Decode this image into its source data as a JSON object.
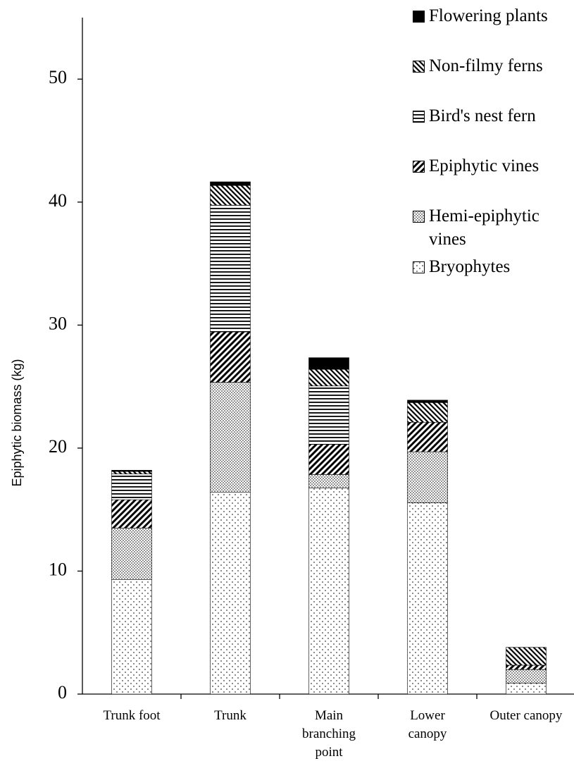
{
  "chart_data": {
    "type": "stacked_bar",
    "y_label": "Epiphytic biomass (kg)",
    "categories": [
      "Trunk foot",
      "Trunk",
      "Main branching point",
      "Lower canopy",
      "Outer canopy"
    ],
    "series": [
      {
        "name": "Bryophytes",
        "color": "#000000",
        "pattern": "sparse-dots",
        "values": [
          9.3,
          16.4,
          16.75,
          15.55,
          0.9
        ]
      },
      {
        "name": "Hemi-epiphytic vines",
        "color": "#000000",
        "pattern": "dense-dots",
        "values": [
          4.2,
          8.95,
          1.1,
          4.15,
          1.1
        ]
      },
      {
        "name": "Epiphytic vines",
        "color": "#000000",
        "pattern": "back-diagonal",
        "values": [
          2.3,
          4.1,
          2.45,
          2.4,
          0.35
        ]
      },
      {
        "name": "Bird's nest fern",
        "color": "#000000",
        "pattern": "horizontal",
        "values": [
          2.1,
          10.3,
          4.75,
          0,
          0
        ]
      },
      {
        "name": "Non-filmy ferns",
        "color": "#000000",
        "pattern": "forward-diagonal",
        "values": [
          0.2,
          1.6,
          1.35,
          1.6,
          1.45
        ]
      },
      {
        "name": "Flowering plants",
        "color": "#000000",
        "pattern": "solid",
        "values": [
          0.1,
          0.3,
          0.95,
          0.2,
          0
        ]
      }
    ],
    "ylim": [
      0,
      55
    ],
    "yticks": [
      0,
      10,
      20,
      30,
      40,
      50
    ],
    "grid": false,
    "legend": "top-right"
  }
}
